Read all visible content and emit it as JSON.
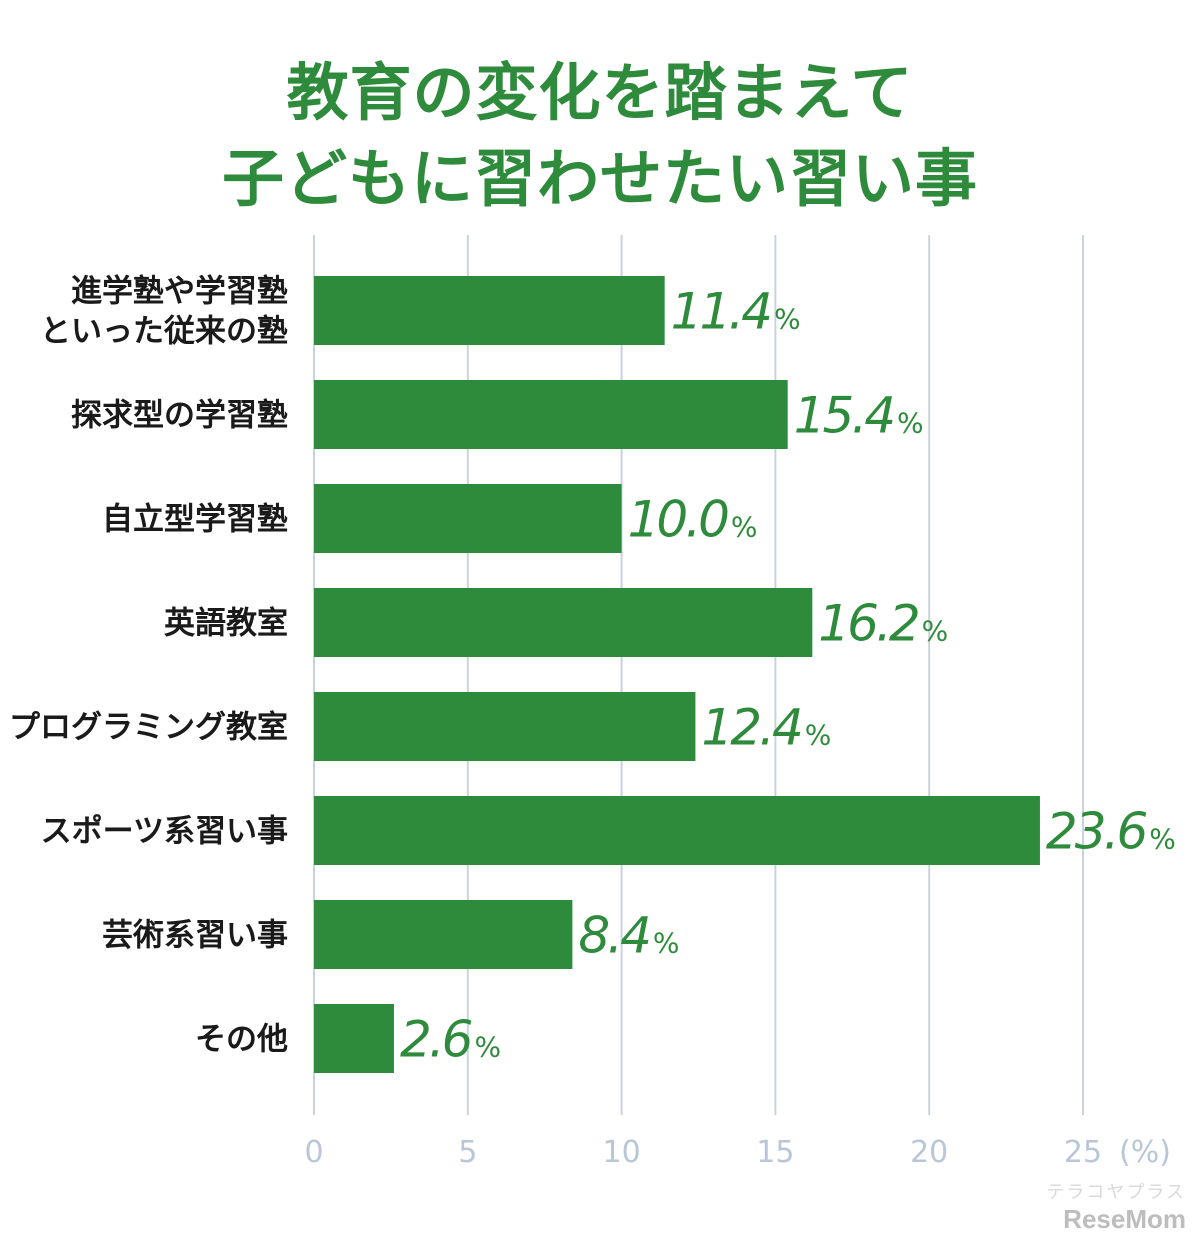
{
  "title_lines": [
    "教育の変化を踏まえて",
    "子どもに習わせたい習い事"
  ],
  "chart_data": {
    "type": "bar",
    "orientation": "horizontal",
    "title": "教育の変化を踏まえて子どもに習わせたい習い事",
    "categories": [
      [
        "進学塾や学習塾",
        "といった従来の塾"
      ],
      [
        "探求型の学習塾"
      ],
      [
        "自立型学習塾"
      ],
      [
        "英語教室"
      ],
      [
        "プログラミング教室"
      ],
      [
        "スポーツ系習い事"
      ],
      [
        "芸術系習い事"
      ],
      [
        "その他"
      ]
    ],
    "values": [
      11.4,
      15.4,
      10.0,
      16.2,
      12.4,
      23.6,
      8.4,
      2.6
    ],
    "value_labels": [
      "11.4",
      "15.4",
      "10.0",
      "16.2",
      "12.4",
      "23.6",
      "8.4",
      "2.6"
    ],
    "value_unit": "%",
    "xlim": [
      0,
      25
    ],
    "x_ticks": [
      "0",
      "5",
      "10",
      "15",
      "20",
      "25"
    ],
    "x_unit_label": "(%)",
    "grid": true,
    "colors": {
      "bar": "#2e8b3c",
      "title": "#2e8b3c",
      "value_label": "#2e8b3c",
      "grid": "#c9d3df",
      "tick": "#b8c6d8",
      "category": "#1a1a1a"
    }
  },
  "branding": {
    "sub": "テラコヤプラス",
    "main": "ReseMom"
  }
}
